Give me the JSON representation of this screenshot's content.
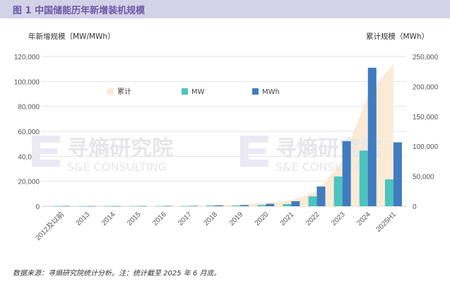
{
  "title": "图 1 中国储能历年新增装机规模",
  "note": "数据来源：寻熵研究院统计分析。注：统计截至 2025 年 6 月底。",
  "watermark": {
    "cn": "寻熵研究院",
    "en": "S&E CONSULTING"
  },
  "colors": {
    "cumulative": "#fbebd6",
    "mw": "#4cc4c0",
    "mwh": "#3f7cc0"
  },
  "chart_data": {
    "type": "bar",
    "title": "图 1 中国储能历年新增装机规模",
    "ylabel": "年新增规模（MW/MWh）",
    "y2label": "累计规模（MWh）",
    "ylim": [
      0,
      120000
    ],
    "y2lim": [
      0,
      250000
    ],
    "yticks": [
      "0",
      "20,000",
      "40,000",
      "60,000",
      "80,000",
      "100,000",
      "120,000"
    ],
    "y2ticks": [
      "0",
      "50,000",
      "100,000",
      "150,000",
      "200,000",
      "250,000"
    ],
    "grid": true,
    "legend_position": "top-center",
    "categories": [
      "2012及以前",
      "2013",
      "2014",
      "2015",
      "2016",
      "2017",
      "2018",
      "2019",
      "2020",
      "2021",
      "2022",
      "2023",
      "2024",
      "2025H1"
    ],
    "series": [
      {
        "name": "累计",
        "type": "area",
        "axis": "right",
        "values": [
          100,
          200,
          300,
          500,
          700,
          1000,
          2000,
          3000,
          5500,
          10000,
          25000,
          75000,
          186000,
          238000
        ]
      },
      {
        "name": "MW",
        "type": "bar",
        "axis": "left",
        "values": [
          100,
          50,
          80,
          100,
          150,
          150,
          500,
          500,
          1000,
          1700,
          7900,
          23800,
          44600,
          21500
        ]
      },
      {
        "name": "MWh",
        "type": "bar",
        "axis": "left",
        "values": [
          200,
          100,
          150,
          200,
          300,
          300,
          700,
          900,
          1900,
          4000,
          15800,
          52100,
          111000,
          51200
        ]
      }
    ]
  }
}
